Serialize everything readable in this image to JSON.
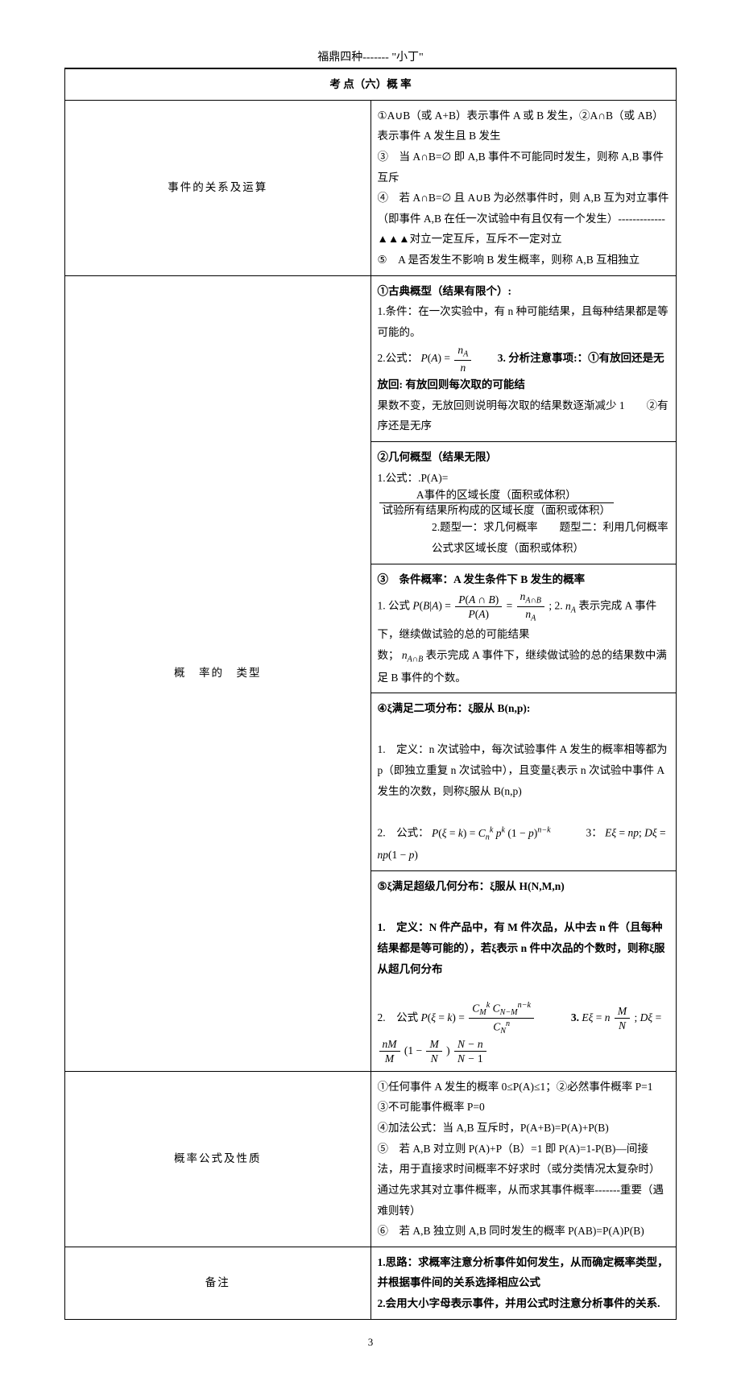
{
  "header": "福鼎四种------- \"小丁\"",
  "title": "考 点（六）概 率",
  "rows": {
    "r1": {
      "label": "事件的关系及运算",
      "lines": [
        "①A∪B（或 A+B）表示事件 A 或 B 发生，②A∩B（或 AB）表示事件 A 发生且 B 发生",
        "③　当 A∩B=∅ 即 A,B 事件不可能同时发生，则称 A,B 事件互斥",
        "④　若 A∩B=∅ 且 A∪B 为必然事件时，则 A,B 互为对立事件（即事件 A,B 在任一次试验中有且仅有一个发生）-------------▲▲▲对立一定互斥，互斥不一定对立",
        "⑤　A 是否发生不影响 B 发生概率，则称 A,B 互相独立"
      ]
    },
    "r2": {
      "label": "概　率的　类型",
      "block1": {
        "h": "①古典概型（结果有限个）:",
        "l1": "1.条件：在一次实验中，有 n 种可能结果，且每种结果都是等可能的。",
        "l2a": "2.公式：",
        "l2b": "3. 分析注意事项:：①有放回还是无放回: 有放回则每次取的可能结",
        "l3": "果数不变，无放回则说明每次取的结果数逐渐减少 1　　②有序还是无序"
      },
      "block2": {
        "h": "②几何概型（结果无限）",
        "frac_num": "A事件的区域长度（面积或体积）",
        "frac_den": "试验所有结果所构成的区域长度（面积或体积）",
        "l1a": "1.公式：.P(A)=",
        "l2": "2.题型一：求几何概率　　题型二：利用几何概率公式求区域长度（面积或体积）"
      },
      "block3": {
        "h": "③　条件概率：A 发生条件下 B 发生的概率",
        "l1a": "1. 公式",
        "l1b": "; 2.",
        "l1c": "表示完成 A 事件下，继续做试验的总的可能结果",
        "l2a": "数；",
        "l2b": "表示完成 A 事件下，继续做试验的总的结果数中满足 B 事件的个数。"
      },
      "block4": {
        "h": "④ξ满足二项分布：ξ服从 B(n,p):",
        "l1": "1.　定义：n 次试验中，每次试验事件 A 发生的概率相等都为 p（即独立重复 n 次试验中），且变量ξ表示 n 次试验中事件 A 发生的次数，则称ξ服从 B(n,p)",
        "l2": "2.　公式："
      },
      "block5": {
        "h": "⑤ξ满足超级几何分布：ξ服从 H(N,M,n)",
        "l1": "1.　定义：N 件产品中，有 M 件次品，从中去 n 件（且每种结果都是等可能的），若ξ表示 n 件中次品的个数时，则称ξ服从超几何分布",
        "l2": "2.　公式",
        "l3": "3."
      }
    },
    "r3": {
      "label": "概率公式及性质",
      "lines": [
        "①任何事件 A 发生的概率 0≤P(A)≤1；②必然事件概率 P=1　③不可能事件概率 P=0",
        "④加法公式：当 A,B 互斥时，P(A+B)=P(A)+P(B)",
        "⑤　若 A,B 对立则 P(A)+P（B）=1 即 P(A)=1-P(B)—间接法，用于直接求时间概率不好求时（或分类情况太复杂时）通过先求其对立事件概率，从而求其事件概率-------重要（遇难则转）",
        "⑥　若 A,B 独立则 A,B 同时发生的概率 P(AB)=P(A)P(B)"
      ]
    },
    "r4": {
      "label": "备注",
      "lines": [
        "1.思路：求概率注意分析事件如何发生，从而确定概率类型，并根据事件间的关系选择相应公式",
        "2.会用大小字母表示事件，并用公式时注意分析事件的关系."
      ]
    }
  },
  "page_number": "3"
}
